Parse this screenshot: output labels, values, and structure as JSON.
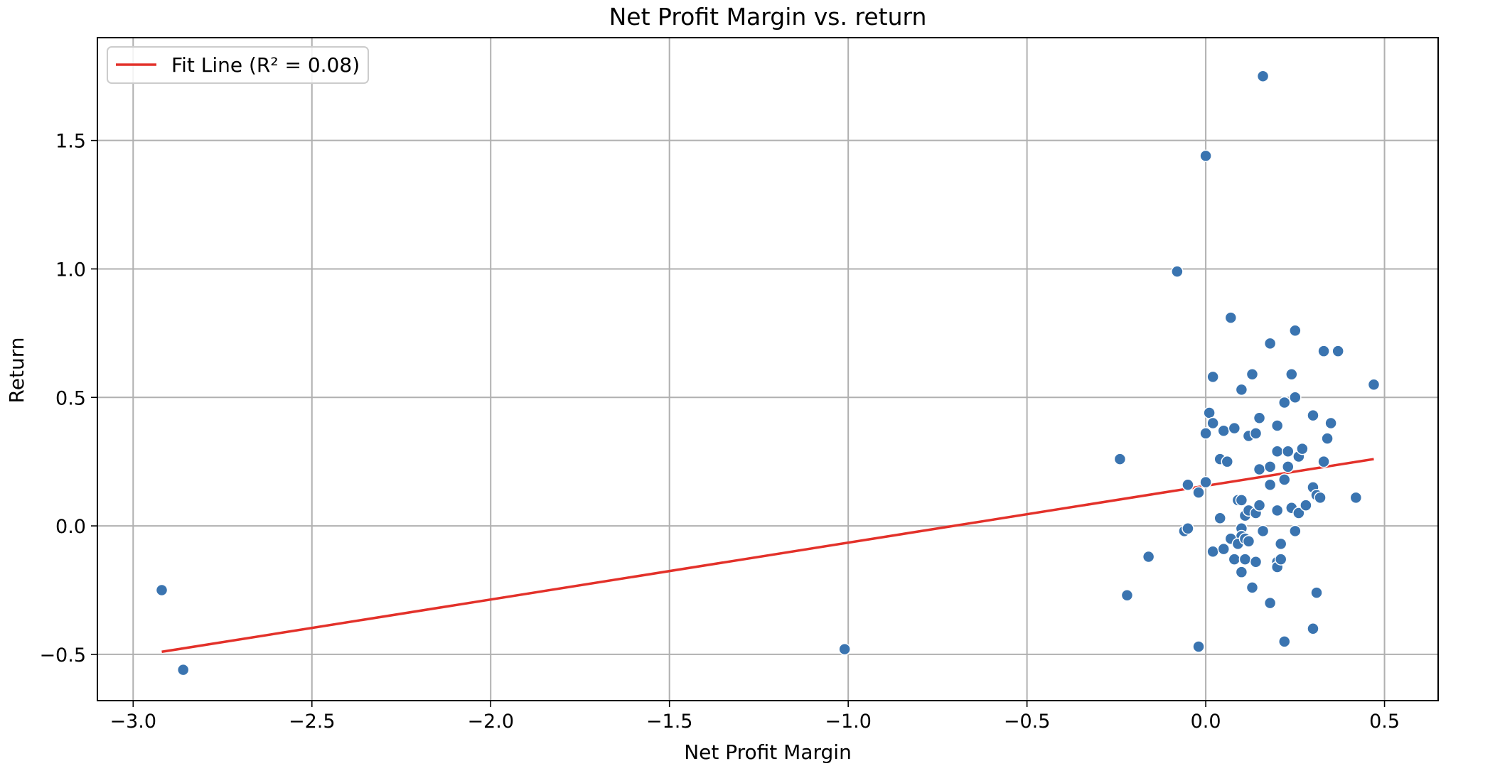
{
  "chart_data": {
    "type": "scatter",
    "title": "Net Profit Margin vs. return",
    "xlabel": "Net Profit Margin",
    "ylabel": "Return",
    "xlim": [
      -3.1,
      0.65
    ],
    "ylim": [
      -0.68,
      1.9
    ],
    "x_ticks": [
      -3.0,
      -2.5,
      -2.0,
      -1.5,
      -1.0,
      -0.5,
      0.0,
      0.5
    ],
    "x_tick_labels": [
      "−3.0",
      "−2.5",
      "−2.0",
      "−1.5",
      "−1.0",
      "−0.5",
      "0.0",
      "0.5"
    ],
    "y_ticks": [
      -0.5,
      0.0,
      0.5,
      1.0,
      1.5
    ],
    "y_tick_labels": [
      "−0.5",
      "0.0",
      "0.5",
      "1.0",
      "1.5"
    ],
    "grid": true,
    "legend": {
      "position": "top-left",
      "label": "Fit Line (R² = 0.08)"
    },
    "colors": {
      "points": "#3a74b0",
      "fit_line": "#e3312a",
      "grid": "#b0b0b0"
    },
    "fit_line": {
      "name": "Fit Line (R² = 0.08)",
      "x": [
        -2.92,
        0.47
      ],
      "y": [
        -0.49,
        0.26
      ]
    },
    "series": [
      {
        "points": [
          [
            -2.92,
            -0.25
          ],
          [
            -2.86,
            -0.56
          ],
          [
            -1.01,
            -0.48
          ],
          [
            -0.24,
            0.26
          ],
          [
            -0.22,
            -0.27
          ],
          [
            -0.16,
            -0.12
          ],
          [
            -0.08,
            0.99
          ],
          [
            0.0,
            1.44
          ],
          [
            0.16,
            1.75
          ],
          [
            0.07,
            0.81
          ],
          [
            0.18,
            0.71
          ],
          [
            0.25,
            0.76
          ],
          [
            0.33,
            0.68
          ],
          [
            0.37,
            0.68
          ],
          [
            0.47,
            0.55
          ],
          [
            0.02,
            0.58
          ],
          [
            0.1,
            0.53
          ],
          [
            0.13,
            0.59
          ],
          [
            0.24,
            0.59
          ],
          [
            0.22,
            0.48
          ],
          [
            0.25,
            0.5
          ],
          [
            0.01,
            0.44
          ],
          [
            0.02,
            0.4
          ],
          [
            0.0,
            0.36
          ],
          [
            0.05,
            0.37
          ],
          [
            0.08,
            0.38
          ],
          [
            0.12,
            0.35
          ],
          [
            0.14,
            0.36
          ],
          [
            0.15,
            0.42
          ],
          [
            0.2,
            0.39
          ],
          [
            0.3,
            0.43
          ],
          [
            0.34,
            0.34
          ],
          [
            0.35,
            0.4
          ],
          [
            0.04,
            0.26
          ],
          [
            0.06,
            0.25
          ],
          [
            0.15,
            0.22
          ],
          [
            0.18,
            0.23
          ],
          [
            0.2,
            0.29
          ],
          [
            0.23,
            0.29
          ],
          [
            0.26,
            0.27
          ],
          [
            0.27,
            0.3
          ],
          [
            0.23,
            0.23
          ],
          [
            0.33,
            0.25
          ],
          [
            -0.05,
            0.16
          ],
          [
            0.0,
            0.17
          ],
          [
            -0.02,
            0.13
          ],
          [
            0.09,
            0.1
          ],
          [
            0.1,
            0.1
          ],
          [
            0.18,
            0.16
          ],
          [
            0.22,
            0.18
          ],
          [
            0.3,
            0.15
          ],
          [
            0.31,
            0.12
          ],
          [
            0.32,
            0.11
          ],
          [
            0.42,
            0.11
          ],
          [
            0.04,
            0.03
          ],
          [
            0.11,
            0.04
          ],
          [
            0.12,
            0.06
          ],
          [
            0.14,
            0.05
          ],
          [
            0.15,
            0.08
          ],
          [
            0.2,
            0.06
          ],
          [
            0.24,
            0.07
          ],
          [
            0.26,
            0.05
          ],
          [
            0.28,
            0.08
          ],
          [
            -0.06,
            -0.02
          ],
          [
            -0.05,
            -0.01
          ],
          [
            0.1,
            -0.01
          ],
          [
            0.1,
            -0.04
          ],
          [
            0.16,
            -0.02
          ],
          [
            0.25,
            -0.02
          ],
          [
            0.07,
            -0.05
          ],
          [
            0.09,
            -0.07
          ],
          [
            0.11,
            -0.05
          ],
          [
            0.12,
            -0.06
          ],
          [
            0.21,
            -0.07
          ],
          [
            0.02,
            -0.1
          ],
          [
            0.05,
            -0.09
          ],
          [
            0.08,
            -0.13
          ],
          [
            0.11,
            -0.13
          ],
          [
            0.14,
            -0.14
          ],
          [
            0.2,
            -0.14
          ],
          [
            0.2,
            -0.16
          ],
          [
            0.21,
            -0.13
          ],
          [
            0.1,
            -0.18
          ],
          [
            0.13,
            -0.24
          ],
          [
            0.18,
            -0.3
          ],
          [
            0.31,
            -0.26
          ],
          [
            0.3,
            -0.4
          ],
          [
            0.22,
            -0.45
          ],
          [
            -0.02,
            -0.47
          ]
        ]
      }
    ]
  }
}
